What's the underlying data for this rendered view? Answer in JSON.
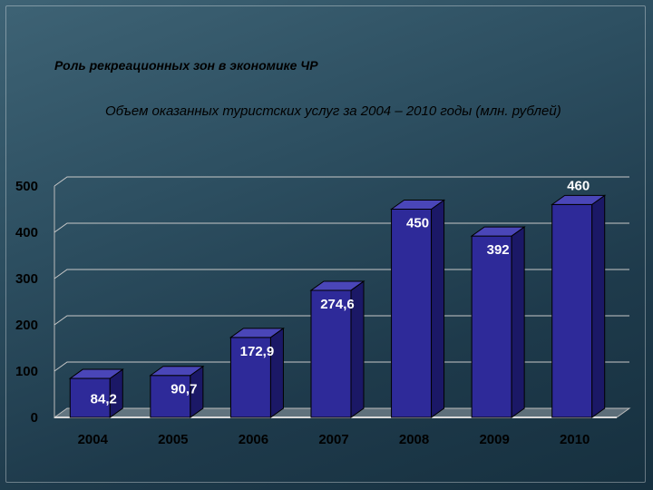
{
  "slide": {
    "title": "Роль рекреационных зон в экономике ЧР",
    "subtitle": "Объем оказанных  туристских услуг за 2004 – 2010 годы (млн. рублей)"
  },
  "chart_data": {
    "type": "bar",
    "title": "",
    "xlabel": "",
    "ylabel": "",
    "ylim": [
      0,
      500
    ],
    "yticks": [
      "0",
      "100",
      "200",
      "300",
      "400",
      "500"
    ],
    "categories": [
      "2004",
      "2005",
      "2006",
      "2007",
      "2008",
      "2009",
      "2010"
    ],
    "values": [
      84.2,
      90.7,
      172.9,
      274.6,
      450,
      392,
      460
    ],
    "data_labels": [
      "84,2",
      "90,7",
      "172,9",
      "274,6",
      "450",
      "392",
      "460"
    ],
    "grid": true,
    "bar_color": "#2e2a99",
    "bar_side_color": "#1b1866",
    "bar_top_color": "#4a46b8",
    "gridline_color": "#c8c8c8"
  }
}
